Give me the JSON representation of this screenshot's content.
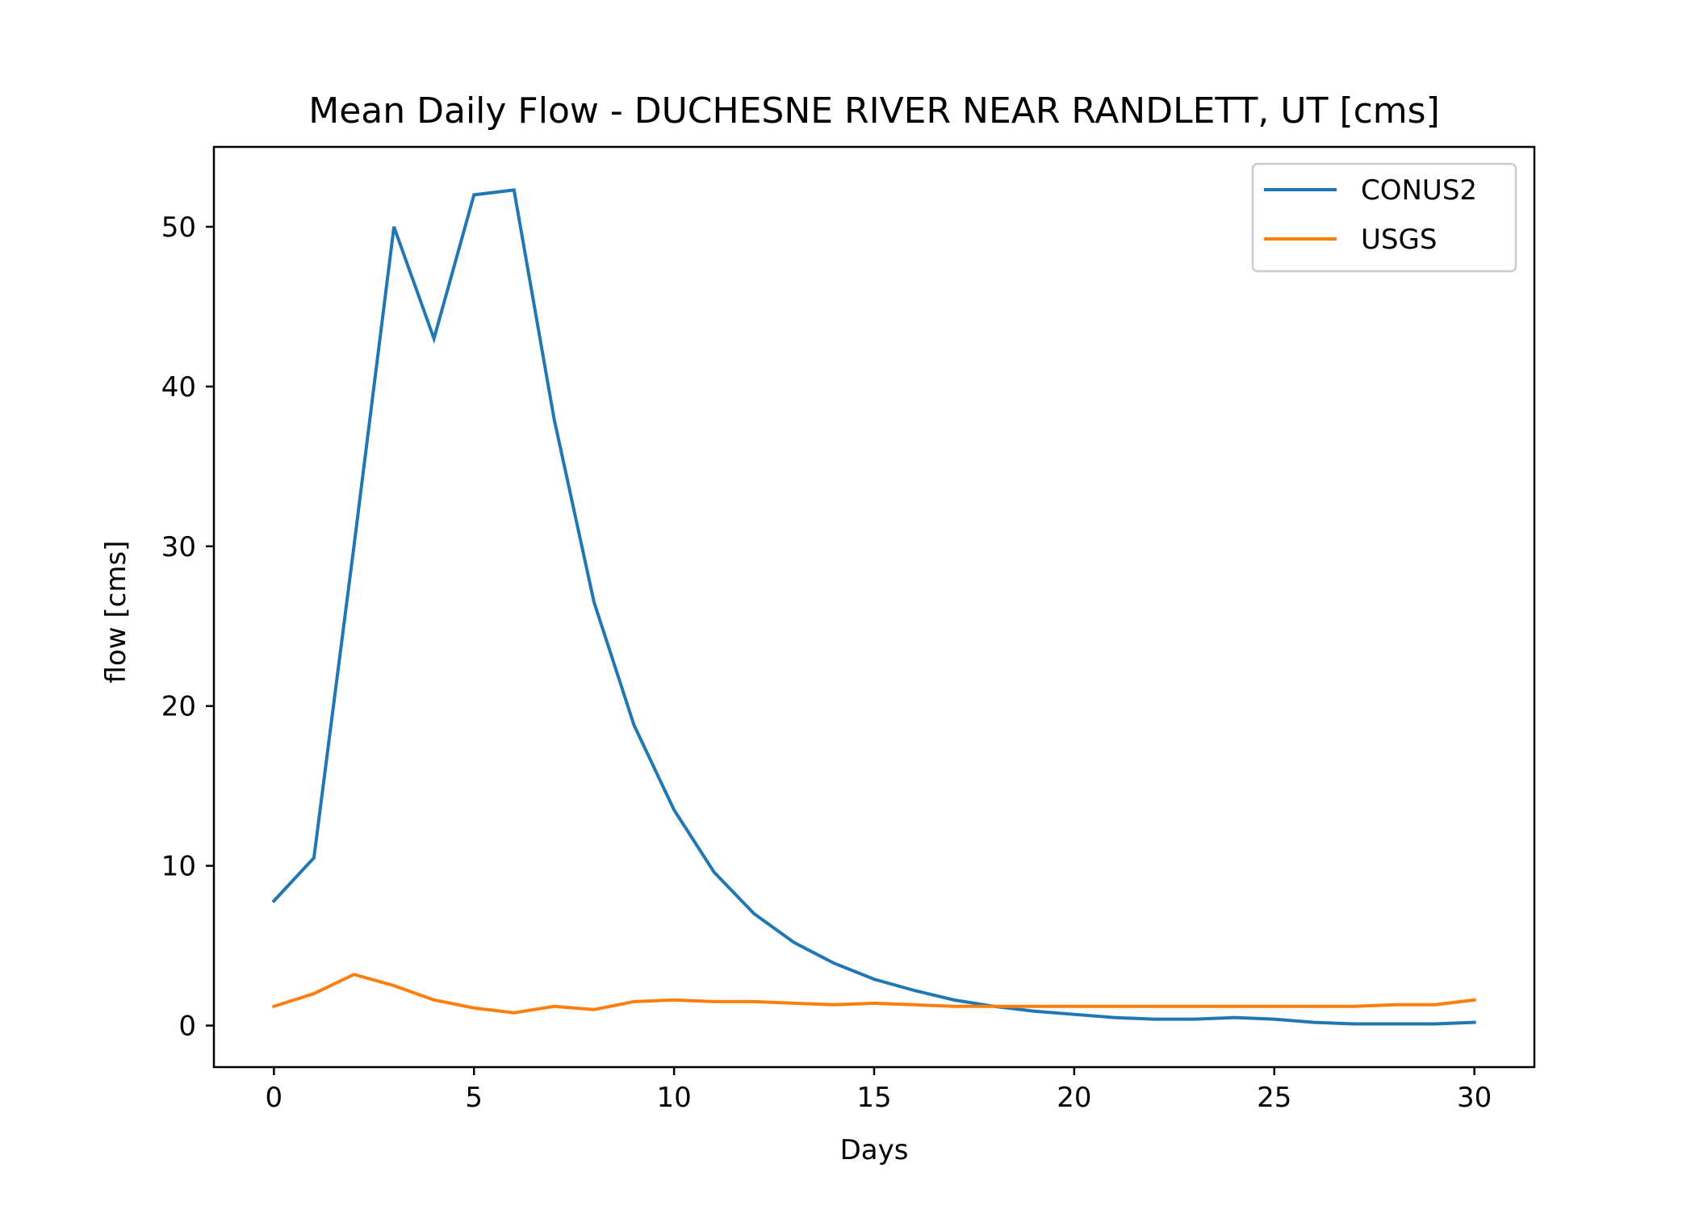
{
  "chart_data": {
    "type": "line",
    "title": "Mean Daily Flow - DUCHESNE RIVER NEAR RANDLETT, UT [cms]",
    "xlabel": "Days",
    "ylabel": "flow [cms]",
    "xlim": [
      -1.5,
      31.5
    ],
    "ylim": [
      -2.6,
      55
    ],
    "xticks": [
      0,
      5,
      10,
      15,
      20,
      25,
      30
    ],
    "yticks": [
      0,
      10,
      20,
      30,
      40,
      50
    ],
    "grid": false,
    "legend_position": "top-right",
    "x": [
      0,
      1,
      2,
      3,
      4,
      5,
      6,
      7,
      8,
      9,
      10,
      11,
      12,
      13,
      14,
      15,
      16,
      17,
      18,
      19,
      20,
      21,
      22,
      23,
      24,
      25,
      26,
      27,
      28,
      29,
      30
    ],
    "series": [
      {
        "name": "CONUS2",
        "color": "#1f77b4",
        "values": [
          7.8,
          10.5,
          30.0,
          50.0,
          43.0,
          52.0,
          52.3,
          38.0,
          26.5,
          18.8,
          13.5,
          9.6,
          7.0,
          5.2,
          3.9,
          2.9,
          2.2,
          1.6,
          1.2,
          0.9,
          0.7,
          0.5,
          0.4,
          0.4,
          0.5,
          0.4,
          0.2,
          0.1,
          0.1,
          0.1,
          0.2
        ]
      },
      {
        "name": "USGS",
        "color": "#ff7f0e",
        "values": [
          1.2,
          2.0,
          3.2,
          2.5,
          1.6,
          1.1,
          0.8,
          1.2,
          1.0,
          1.5,
          1.6,
          1.5,
          1.5,
          1.4,
          1.3,
          1.4,
          1.3,
          1.2,
          1.2,
          1.2,
          1.2,
          1.2,
          1.2,
          1.2,
          1.2,
          1.2,
          1.2,
          1.2,
          1.3,
          1.3,
          1.6
        ]
      }
    ]
  }
}
